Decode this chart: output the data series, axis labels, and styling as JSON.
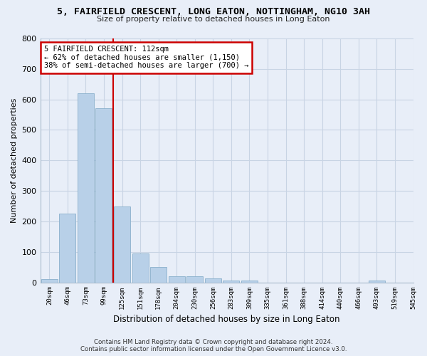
{
  "title": "5, FAIRFIELD CRESCENT, LONG EATON, NOTTINGHAM, NG10 3AH",
  "subtitle": "Size of property relative to detached houses in Long Eaton",
  "xlabel": "Distribution of detached houses by size in Long Eaton",
  "ylabel": "Number of detached properties",
  "bar_values": [
    10,
    225,
    620,
    570,
    250,
    95,
    50,
    20,
    20,
    12,
    5,
    5,
    0,
    0,
    0,
    0,
    0,
    0,
    5,
    0
  ],
  "bin_labels": [
    "20sqm",
    "46sqm",
    "73sqm",
    "99sqm",
    "125sqm",
    "151sqm",
    "178sqm",
    "204sqm",
    "230sqm",
    "256sqm",
    "283sqm",
    "309sqm",
    "335sqm",
    "361sqm",
    "388sqm",
    "414sqm",
    "440sqm",
    "466sqm",
    "493sqm",
    "519sqm",
    "545sqm"
  ],
  "bar_color": "#b8d0e8",
  "bar_edge_color": "#8ab0cc",
  "vline_color": "#cc0000",
  "grid_color": "#c8d4e4",
  "background_color": "#e8eef8",
  "annotation_text": "5 FAIRFIELD CRESCENT: 112sqm\n← 62% of detached houses are smaller (1,150)\n38% of semi-detached houses are larger (700) →",
  "annotation_box_color": "#ffffff",
  "annotation_border_color": "#cc0000",
  "footer_line1": "Contains HM Land Registry data © Crown copyright and database right 2024.",
  "footer_line2": "Contains public sector information licensed under the Open Government Licence v3.0.",
  "ylim": [
    0,
    800
  ],
  "yticks": [
    0,
    100,
    200,
    300,
    400,
    500,
    600,
    700,
    800
  ],
  "vline_bin_index": 3,
  "n_bars": 20
}
